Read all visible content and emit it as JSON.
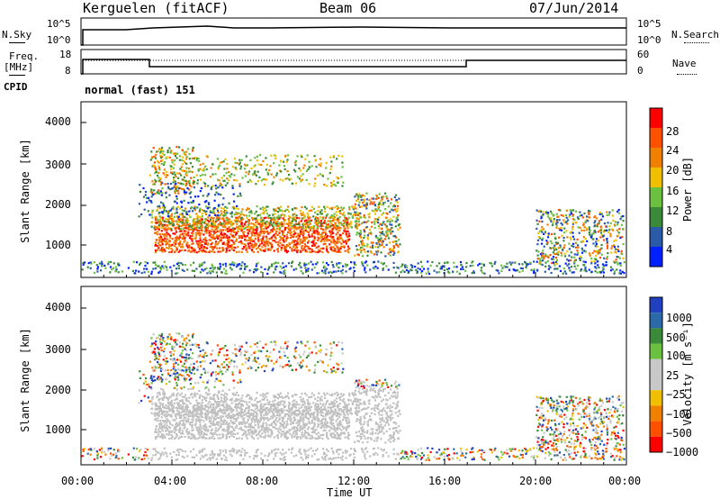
{
  "header": {
    "station": "Kerguelen (fitACF)",
    "beam": "Beam 06",
    "date": "07/Jun/2014"
  },
  "status_panel": {
    "nsky_label": "N.Sky",
    "nsky_ticks": [
      "10^5",
      "10^0"
    ],
    "nsearch_ticks": [
      "10^5",
      "10^0"
    ],
    "nsearch_label": "N.Search",
    "freq_label_1": "Freq.",
    "freq_label_2": "[MHz]",
    "freq_ticks": [
      "18",
      "8"
    ],
    "nave_ticks": [
      "60",
      "0"
    ],
    "nave_label": "Nave",
    "cpid_label": "CPID",
    "cpid_value": "normal (fast) 151"
  },
  "colors": {
    "power_scale": [
      "#0020ff",
      "#2a5aa8",
      "#3a8a3a",
      "#6cc040",
      "#f0c000",
      "#f08000",
      "#ff5000",
      "#ff0000"
    ],
    "velocity_scale": [
      "#2040c0",
      "#2a6aa8",
      "#3a8a3a",
      "#6cc040",
      "#c8c8c8",
      "#c8c8c8",
      "#f0c000",
      "#f08000",
      "#ff5000",
      "#ff0000"
    ],
    "ground_scatter": "#c0c0c0"
  },
  "chart_data": [
    {
      "type": "heatmap",
      "name": "power",
      "ylabel": "Slant Range [km]",
      "colorbar_label": "Power [dB]",
      "colorbar_ticks": [
        "28",
        "24",
        "20",
        "16",
        "12",
        "8",
        "4"
      ],
      "xlim": [
        0,
        24
      ],
      "ylim": [
        200,
        4600
      ],
      "yticks": [
        "1000",
        "2000",
        "3000",
        "4000"
      ],
      "grid": false
    },
    {
      "type": "heatmap",
      "name": "velocity",
      "ylabel": "Slant Range [km]",
      "colorbar_label": "Velocity [m s⁻¹]",
      "colorbar_ticks": [
        "1000",
        "500",
        "100",
        "25",
        "−25",
        "−100",
        "−500",
        "−1000"
      ],
      "xlim": [
        0,
        24
      ],
      "ylim": [
        200,
        4600
      ],
      "yticks": [
        "1000",
        "2000",
        "3000",
        "4000"
      ],
      "grid": false
    }
  ],
  "xaxis": {
    "ticks": [
      "00:00",
      "04:00",
      "08:00",
      "12:00",
      "16:00",
      "20:00",
      "00:00"
    ],
    "label": "Time UT"
  }
}
